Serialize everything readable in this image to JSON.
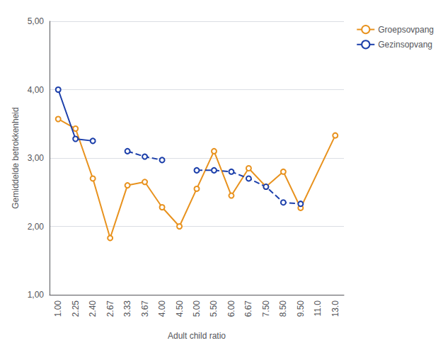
{
  "chart_data": {
    "type": "line",
    "xlabel": "Adult child ratio",
    "ylabel": "Gemiddelde betrokkenheid",
    "categories": [
      "1.00",
      "2.25",
      "2.40",
      "2.67",
      "3.33",
      "3.67",
      "4.00",
      "4.50",
      "5.00",
      "5.50",
      "6.00",
      "6.67",
      "7.50",
      "8.50",
      "9.50",
      "11.0",
      "13.0"
    ],
    "series": [
      {
        "name": "Groepsovpang",
        "color": "#e8921e",
        "line_style": "solid",
        "marker": "circle",
        "values": [
          3.57,
          3.43,
          2.7,
          1.83,
          2.6,
          2.65,
          2.28,
          2.0,
          2.55,
          3.1,
          2.45,
          2.85,
          2.58,
          2.8,
          2.27,
          null,
          3.33
        ]
      },
      {
        "name": "Gezinsopvang",
        "color": "#1c3faa",
        "line_style": "solid",
        "marker": "circle",
        "values": [
          4.0,
          3.28,
          3.25,
          null,
          null,
          null,
          null,
          null,
          null,
          null,
          null,
          null,
          null,
          null,
          null,
          null,
          null
        ]
      },
      {
        "color": "#1c3faa",
        "line_style": "dashed",
        "marker": "circle",
        "values": [
          null,
          null,
          null,
          null,
          3.1,
          3.02,
          2.97,
          null,
          2.82,
          2.82,
          2.8,
          2.7,
          2.58,
          2.35,
          2.33,
          null,
          null
        ]
      }
    ],
    "ylim": [
      1.0,
      5.0
    ],
    "yticks": [
      {
        "value": 1.0,
        "label": "1,00"
      },
      {
        "value": 2.0,
        "label": "2,00"
      },
      {
        "value": 3.0,
        "label": "3,00"
      },
      {
        "value": 4.0,
        "label": "4,00"
      },
      {
        "value": 5.0,
        "label": "5,00"
      }
    ],
    "grid": true,
    "legend": "upper right"
  }
}
